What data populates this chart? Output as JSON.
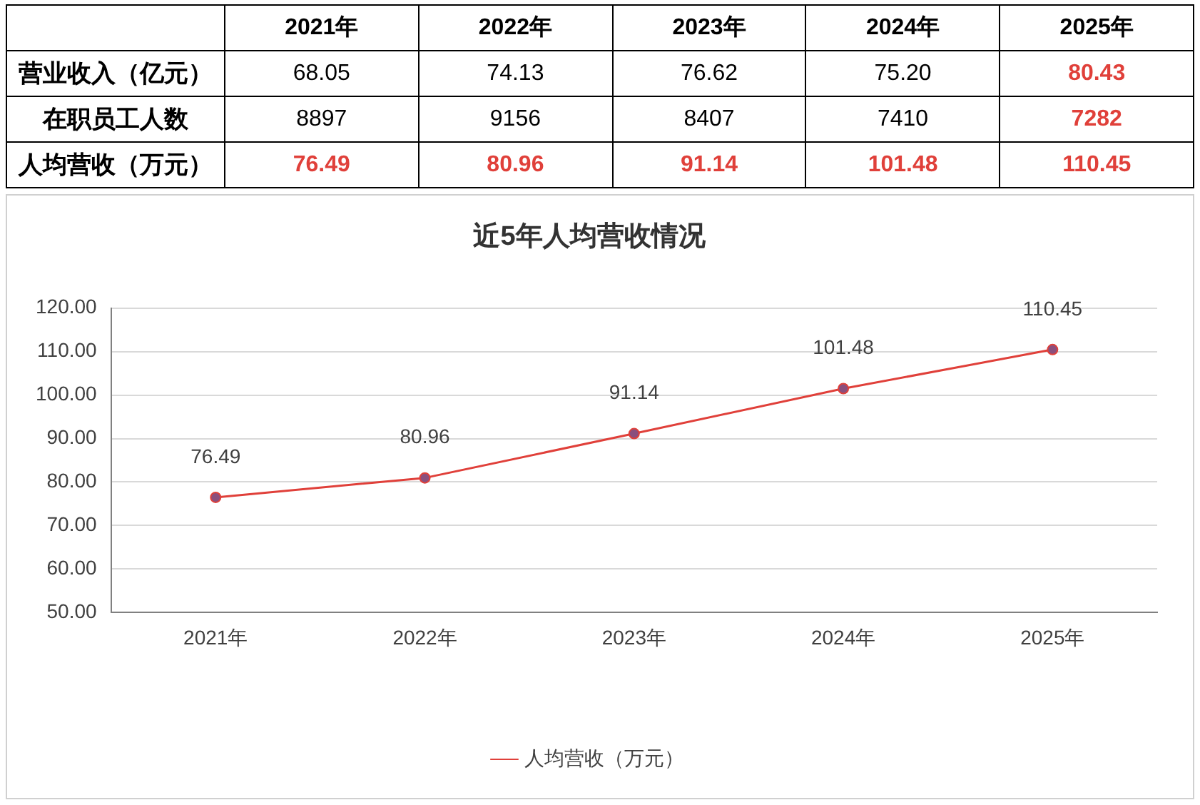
{
  "chart_data": [
    {
      "type": "heatmap",
      "categories": [
        "2021年",
        "2022年",
        "2023年",
        "2024年",
        "2025年"
      ],
      "y_categories": [
        "营业收入（亿元）",
        "在职员工人数",
        "人均营收（万元）"
      ],
      "cells": [
        [
          68.05,
          74.13,
          76.62,
          75.2,
          80.43
        ],
        [
          8897,
          9156,
          8407,
          7410,
          7282
        ],
        [
          76.49,
          80.96,
          91.14,
          101.48,
          110.45
        ]
      ],
      "cell_labels": [
        [
          "68.05",
          "74.13",
          "76.62",
          "75.20",
          "80.43"
        ],
        [
          "8897",
          "9156",
          "8407",
          "7410",
          "7282"
        ],
        [
          "76.49",
          "80.96",
          "91.14",
          "101.48",
          "110.45"
        ]
      ],
      "colors": [
        [
          "#000000",
          "#000000",
          "#000000",
          "#000000",
          "#e0403a"
        ],
        [
          "#000000",
          "#000000",
          "#000000",
          "#000000",
          "#e0403a"
        ],
        [
          "#e0403a",
          "#e0403a",
          "#e0403a",
          "#e0403a",
          "#e0403a"
        ]
      ]
    },
    {
      "type": "line",
      "title": "近5年人均营收情况",
      "categories": [
        "2021年",
        "2022年",
        "2023年",
        "2024年",
        "2025年"
      ],
      "series": [
        {
          "name": "人均营收（万元）",
          "color": "#e0403a",
          "values": [
            76.49,
            80.96,
            91.14,
            101.48,
            110.45
          ]
        }
      ],
      "ylim": [
        50,
        120
      ],
      "yticks": [
        {
          "value": 50,
          "label": "50.00"
        },
        {
          "value": 60,
          "label": "60.00"
        },
        {
          "value": 70,
          "label": "70.00"
        },
        {
          "value": 80,
          "label": "80.00"
        },
        {
          "value": 90,
          "label": "90.00"
        },
        {
          "value": 100,
          "label": "100.00"
        },
        {
          "value": 110,
          "label": "110.00"
        },
        {
          "value": 120,
          "label": "120.00"
        }
      ],
      "grid": "y",
      "legend": "bottom",
      "marker": "circle",
      "line_style": "solid",
      "data_labels": true
    }
  ]
}
